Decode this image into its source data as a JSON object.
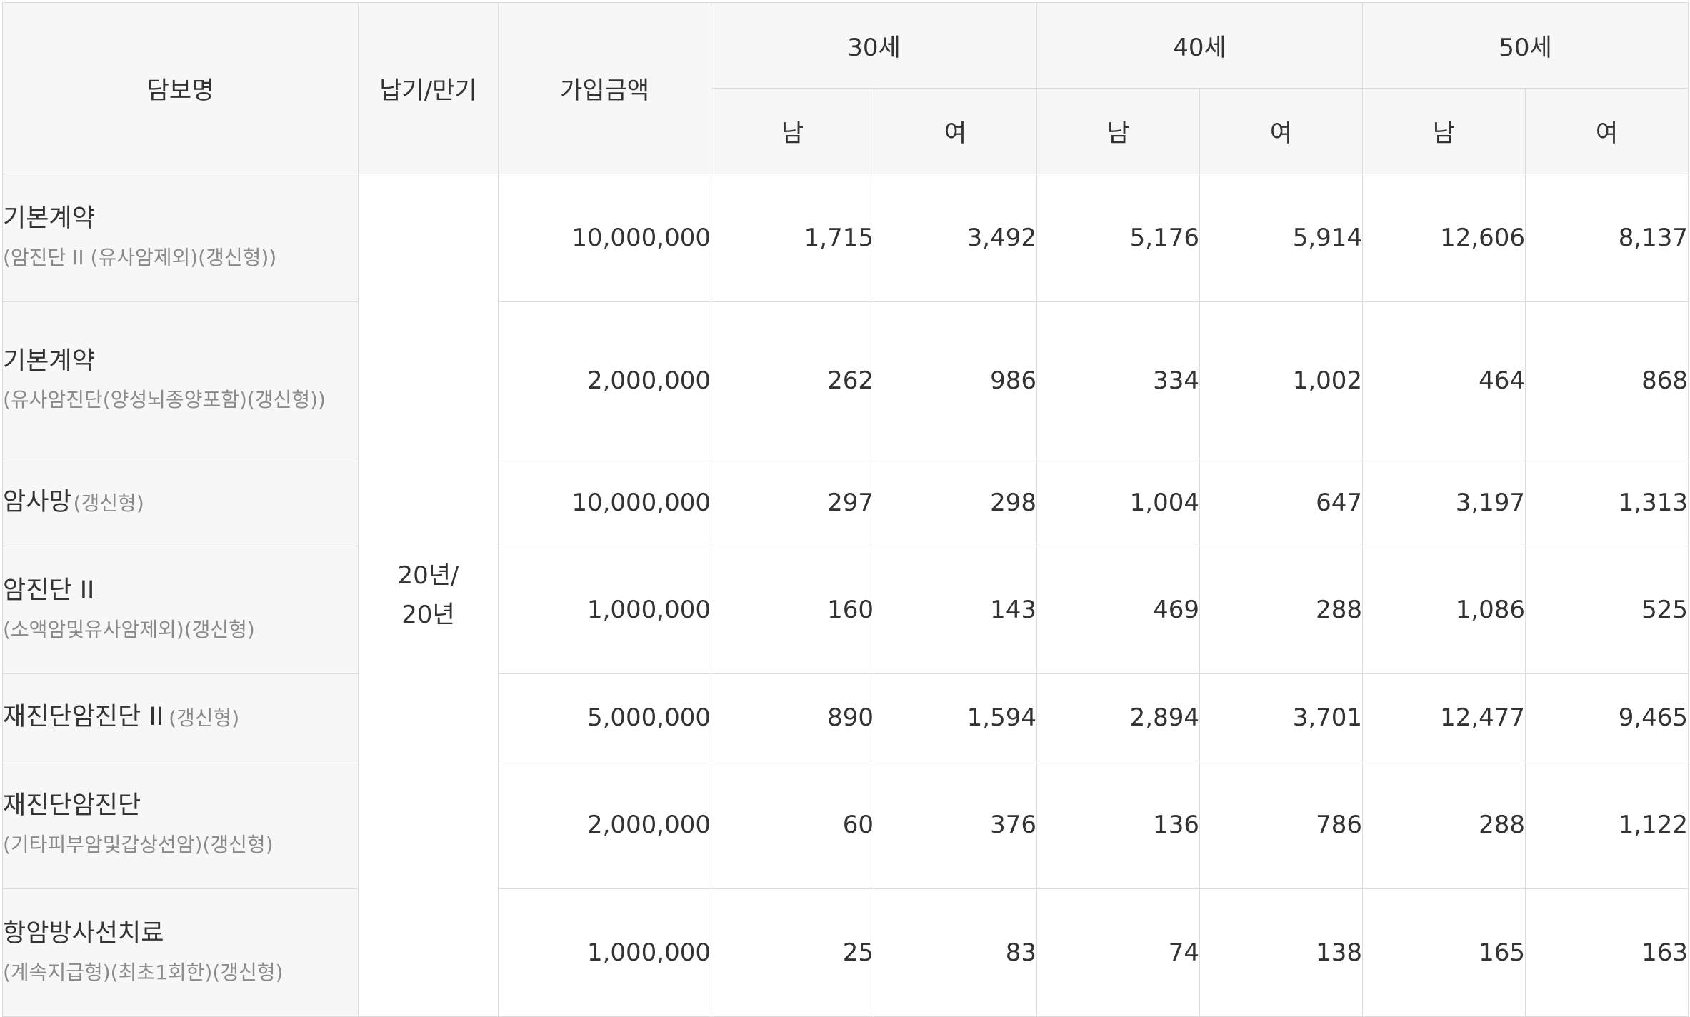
{
  "headers": {
    "coverage": "담보명",
    "term": "납기/만기",
    "amount": "가입금액",
    "age_groups": [
      "30세",
      "40세",
      "50세"
    ],
    "male": "남",
    "female": "여"
  },
  "term_value_line1": "20년/",
  "term_value_line2": "20년",
  "rows": [
    {
      "name": "기본계약",
      "note": "(암진단 II (유사암제외)(갱신형))",
      "amount": "10,000,000",
      "premiums": [
        "1,715",
        "3,492",
        "5,176",
        "5,914",
        "12,606",
        "8,137"
      ]
    },
    {
      "name": "기본계약",
      "note": "(유사암진단(양성뇌종양포함)(갱신형))",
      "amount": "2,000,000",
      "premiums": [
        "262",
        "986",
        "334",
        "1,002",
        "464",
        "868"
      ]
    },
    {
      "name": "암사망",
      "note": "(갱신형)",
      "amount": "10,000,000",
      "premiums": [
        "297",
        "298",
        "1,004",
        "647",
        "3,197",
        "1,313"
      ]
    },
    {
      "name": "암진단 II",
      "note": "(소액암및유사암제외)(갱신형)",
      "amount": "1,000,000",
      "premiums": [
        "160",
        "143",
        "469",
        "288",
        "1,086",
        "525"
      ]
    },
    {
      "name": "재진단암진단 II",
      "note": "(갱신형)",
      "amount": "5,000,000",
      "premiums": [
        "890",
        "1,594",
        "2,894",
        "3,701",
        "12,477",
        "9,465"
      ]
    },
    {
      "name": "재진단암진단",
      "note": "(기타피부암및갑상선암)(갱신형)",
      "amount": "2,000,000",
      "premiums": [
        "60",
        "376",
        "136",
        "786",
        "288",
        "1,122"
      ]
    },
    {
      "name": "항암방사선치료",
      "note": "(계속지급형)(최초1회한)(갱신형)",
      "amount": "1,000,000",
      "premiums": [
        "25",
        "83",
        "74",
        "138",
        "165",
        "163"
      ]
    }
  ]
}
